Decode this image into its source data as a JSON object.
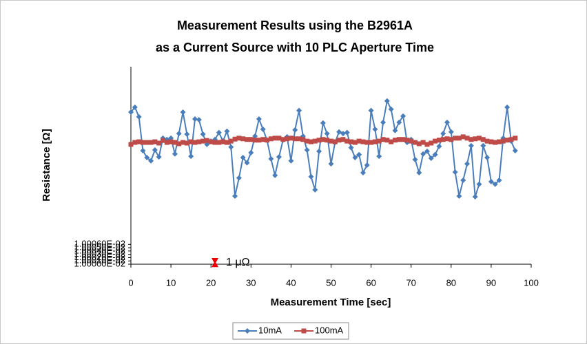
{
  "chart_data": {
    "type": "line",
    "title": [
      "Measurement Results using the B2961A",
      "as a Current Source with 10 PLC Aperture Time"
    ],
    "x_label": "Measurement Time [sec]",
    "y_label": "Resistance [Ω]",
    "annotation": "1 μΩ",
    "x": [
      0,
      1,
      2,
      3,
      4,
      5,
      6,
      7,
      8,
      9,
      10,
      11,
      12,
      13,
      14,
      15,
      16,
      17,
      18,
      19,
      20,
      21,
      22,
      23,
      24,
      25,
      26,
      27,
      28,
      29,
      30,
      31,
      32,
      33,
      34,
      35,
      36,
      37,
      38,
      39,
      40,
      41,
      42,
      43,
      44,
      45,
      46,
      47,
      48,
      49,
      50,
      51,
      52,
      53,
      54,
      55,
      56,
      57,
      58,
      59,
      60,
      61,
      62,
      63,
      64,
      65,
      66,
      67,
      68,
      69,
      70,
      71,
      72,
      73,
      74,
      75,
      76,
      77,
      78,
      79,
      80,
      81,
      82,
      83,
      84,
      85,
      86,
      87,
      88,
      89,
      90,
      91,
      92,
      93,
      94,
      95,
      96
    ],
    "series": [
      {
        "name": "10mA",
        "color": "#4a7ebb",
        "marker": "diamond",
        "values": [
          0.01000462,
          0.01000477,
          0.01000448,
          0.01000345,
          0.01000324,
          0.01000314,
          0.01000347,
          0.01000326,
          0.01000383,
          0.01000379,
          0.01000383,
          0.01000335,
          0.01000397,
          0.01000462,
          0.01000395,
          0.01000328,
          0.01000441,
          0.01000439,
          0.01000395,
          0.01000364,
          0.01000374,
          0.01000379,
          0.010004,
          0.01000374,
          0.01000404,
          0.01000356,
          0.01000207,
          0.01000262,
          0.01000324,
          0.01000308,
          0.01000339,
          0.01000389,
          0.01000441,
          0.0100041,
          0.01000377,
          0.0100032,
          0.0100027,
          0.01000326,
          0.01000377,
          0.01000387,
          0.01000314,
          0.01000408,
          0.01000467,
          0.01000389,
          0.01000347,
          0.01000266,
          0.01000226,
          0.01000343,
          0.01000429,
          0.01000397,
          0.01000305,
          0.0100037,
          0.01000402,
          0.01000397,
          0.010004,
          0.01000354,
          0.01000324,
          0.01000333,
          0.01000278,
          0.01000301,
          0.01000467,
          0.0100041,
          0.01000328,
          0.01000431,
          0.01000496,
          0.01000471,
          0.01000406,
          0.01000431,
          0.0100045,
          0.0100037,
          0.01000379,
          0.01000318,
          0.01000278,
          0.01000335,
          0.01000343,
          0.01000322,
          0.01000333,
          0.01000358,
          0.01000397,
          0.01000431,
          0.01000402,
          0.0100028,
          0.01000207,
          0.01000255,
          0.01000305,
          0.0100036,
          0.01000205,
          0.01000243,
          0.0100036,
          0.01000324,
          0.01000251,
          0.01000243,
          0.01000255,
          0.01000383,
          0.01000477,
          0.01000374,
          0.01000345
        ]
      },
      {
        "name": "100mA",
        "color": "#be4b48",
        "marker": "square",
        "values": [
          0.01000364,
          0.0100037,
          0.01000372,
          0.0100037,
          0.0100037,
          0.0100037,
          0.01000372,
          0.01000368,
          0.01000376,
          0.0100037,
          0.01000372,
          0.0100037,
          0.01000366,
          0.0100037,
          0.01000368,
          0.01000372,
          0.0100037,
          0.01000372,
          0.01000374,
          0.01000376,
          0.01000372,
          0.0100037,
          0.0100037,
          0.01000372,
          0.0100037,
          0.01000374,
          0.0100038,
          0.01000383,
          0.01000381,
          0.01000379,
          0.01000379,
          0.01000377,
          0.01000377,
          0.01000379,
          0.01000377,
          0.01000381,
          0.01000383,
          0.01000383,
          0.01000379,
          0.01000381,
          0.01000383,
          0.01000381,
          0.01000381,
          0.01000379,
          0.01000374,
          0.01000372,
          0.01000374,
          0.01000377,
          0.01000379,
          0.01000377,
          0.01000374,
          0.01000372,
          0.01000377,
          0.01000379,
          0.01000374,
          0.01000372,
          0.0100037,
          0.01000374,
          0.01000372,
          0.0100037,
          0.0100037,
          0.01000372,
          0.01000374,
          0.01000379,
          0.01000377,
          0.01000372,
          0.01000377,
          0.01000379,
          0.01000379,
          0.01000377,
          0.01000374,
          0.0100037,
          0.01000366,
          0.0100037,
          0.01000364,
          0.01000368,
          0.01000374,
          0.01000377,
          0.01000379,
          0.01000381,
          0.01000379,
          0.01000383,
          0.01000383,
          0.01000387,
          0.01000383,
          0.01000379,
          0.01000381,
          0.01000383,
          0.01000379,
          0.01000374,
          0.01000372,
          0.0100037,
          0.01000372,
          0.01000374,
          0.01000377,
          0.01000379,
          0.01000383
        ]
      }
    ],
    "xlim": [
      0,
      100
    ],
    "xticks": [
      0,
      10,
      20,
      30,
      40,
      50,
      60,
      70,
      80,
      90,
      100
    ],
    "ylim": [
      0.01,
      0.010006
    ],
    "yticks": [
      {
        "value": 0.01,
        "label": "1.00000E-02"
      },
      {
        "value": 0.0100001,
        "label": "1.00010E-02"
      },
      {
        "value": 0.0100002,
        "label": "1.00020E-02"
      },
      {
        "value": 0.0100003,
        "label": "1.00030E-02"
      },
      {
        "value": 0.0100004,
        "label": "1.00040E-02"
      },
      {
        "value": 0.0100005,
        "label": "1.00050E-02"
      },
      {
        "value": 0.0100006,
        "label": "1.00060E-02"
      }
    ],
    "grid": false,
    "legend": "bottom"
  }
}
